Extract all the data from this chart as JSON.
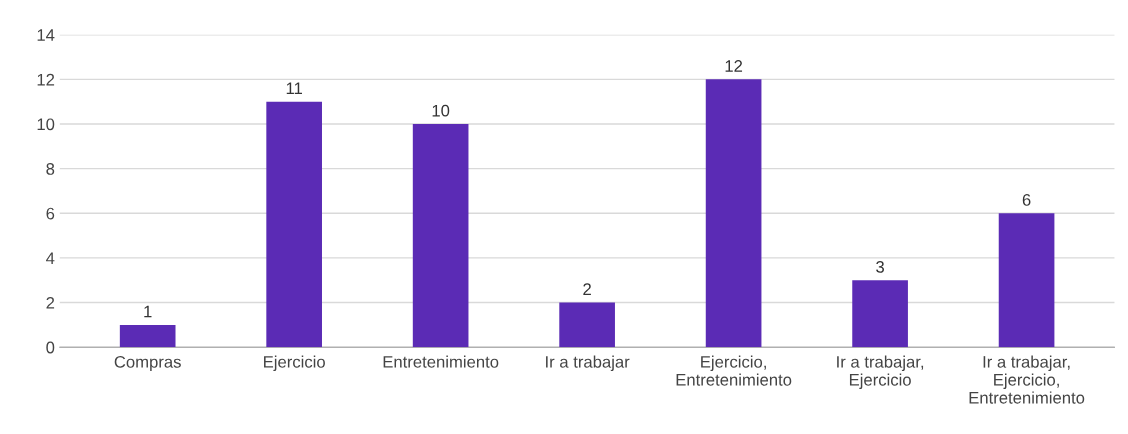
{
  "chart_data": {
    "type": "bar",
    "categories": [
      "Compras",
      "Ejercicio",
      "Entretenimiento",
      "Ir a trabajar",
      "Ejercicio,\nEntretenimiento",
      "Ir a trabajar,\nEjercicio",
      "Ir a trabajar,\nEjercicio,\nEntretenimiento"
    ],
    "values": [
      1,
      11,
      10,
      2,
      12,
      3,
      6
    ],
    "color": "#5b2bb5",
    "ylim": [
      0,
      14
    ],
    "yticks": [
      0,
      2,
      4,
      6,
      8,
      10,
      12,
      14
    ],
    "grid": "y",
    "data_labels": true
  }
}
